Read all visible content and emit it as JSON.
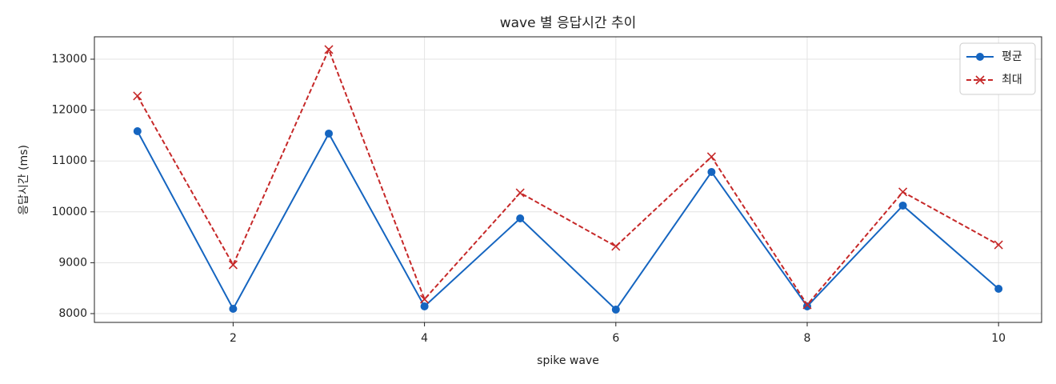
{
  "chart_data": {
    "type": "line",
    "title": "wave 별 응답시간 추이",
    "x_label": "spike wave",
    "y_label": "응답시간 (ms)",
    "x": [
      1,
      2,
      3,
      4,
      5,
      6,
      7,
      8,
      9,
      10
    ],
    "series": [
      {
        "name": "평균",
        "color": "#1565c0",
        "marker": "o",
        "linestyle": "solid",
        "values": [
          11585,
          8094,
          11538,
          8142,
          9871,
          8079,
          10783,
          8142,
          10123,
          8487
        ]
      },
      {
        "name": "최대",
        "color": "#c62828",
        "marker": "x",
        "linestyle": "dashed",
        "values": [
          12277,
          8959,
          13189,
          8283,
          10374,
          9321,
          11082,
          8173,
          10390,
          9352
        ]
      }
    ],
    "xlim": [
      0.55,
      10.45
    ],
    "ylim": [
      7827,
      13440
    ],
    "xticks": [
      2,
      4,
      6,
      8,
      10
    ],
    "yticks": [
      8000,
      9000,
      10000,
      11000,
      12000,
      13000
    ],
    "grid": true,
    "legend": "upper right"
  }
}
